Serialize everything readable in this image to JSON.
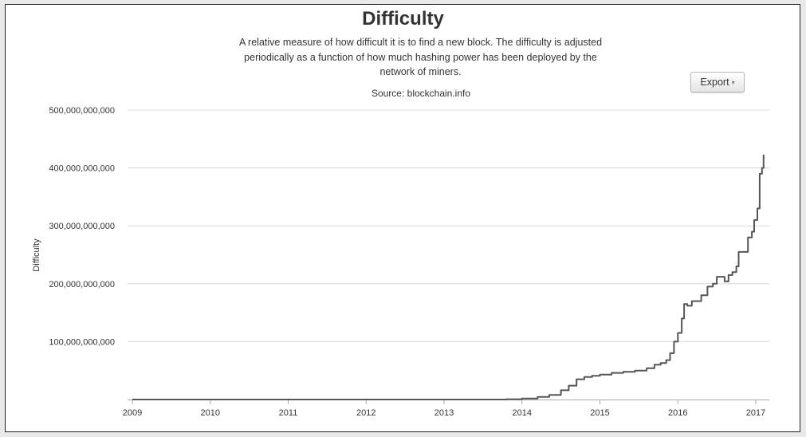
{
  "chart_data": {
    "type": "line",
    "title": "Difficulty",
    "subtitle": "A relative measure of how difficult it is to find a new block. The difficulty is adjusted periodically as a function of how much hashing power has been deployed by the network of miners.",
    "source": "Source: blockchain.info",
    "xlabel": "",
    "ylabel": "Difficulty",
    "xlim": [
      2009.0,
      2017.2
    ],
    "ylim": [
      0,
      500000000000
    ],
    "grid": true,
    "x_ticks": [
      "2009",
      "2010",
      "2011",
      "2012",
      "2013",
      "2014",
      "2015",
      "2016",
      "2017"
    ],
    "y_ticks": [
      "100,000,000,000",
      "200,000,000,000",
      "300,000,000,000",
      "400,000,000,000",
      "500,000,000,000"
    ],
    "series": [
      {
        "name": "",
        "color": "#555555",
        "step": true,
        "x": [
          2009.0,
          2013.5,
          2013.8,
          2014.0,
          2014.2,
          2014.35,
          2014.5,
          2014.6,
          2014.7,
          2014.8,
          2014.9,
          2015.0,
          2015.15,
          2015.3,
          2015.45,
          2015.6,
          2015.7,
          2015.78,
          2015.85,
          2015.9,
          2015.95,
          2016.0,
          2016.05,
          2016.08,
          2016.12,
          2016.18,
          2016.3,
          2016.38,
          2016.45,
          2016.5,
          2016.6,
          2016.65,
          2016.7,
          2016.75,
          2016.78,
          2016.85,
          2016.9,
          2016.95,
          2016.98,
          2017.02,
          2017.05,
          2017.08,
          2017.1
        ],
        "values": [
          0,
          0,
          500000000,
          1600000000,
          4500000000,
          8000000000,
          16000000000,
          24000000000,
          35000000000,
          39000000000,
          41000000000,
          43000000000,
          46000000000,
          48000000000,
          50000000000,
          54000000000,
          60000000000,
          63000000000,
          68000000000,
          80000000000,
          100000000000,
          115000000000,
          140000000000,
          165000000000,
          162000000000,
          170000000000,
          180000000000,
          195000000000,
          200000000000,
          212000000000,
          204000000000,
          215000000000,
          220000000000,
          230000000000,
          255000000000,
          255000000000,
          280000000000,
          290000000000,
          310000000000,
          330000000000,
          390000000000,
          400000000000,
          423000000000
        ]
      }
    ]
  },
  "export_label": "Export",
  "caret_glyph": "▾"
}
